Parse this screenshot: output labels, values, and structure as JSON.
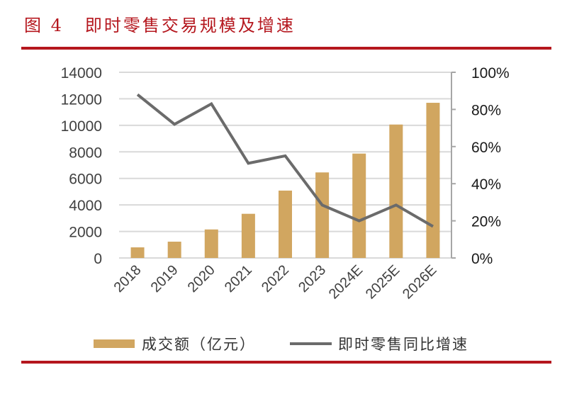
{
  "header": {
    "figure_number": "图 4",
    "title": "即时零售交易规模及增速"
  },
  "colors": {
    "accent_red": "#B5171E",
    "bar": "#D1A660",
    "line": "#6B6B6B",
    "grid": "#D9D9D9",
    "axis": "#A6A6A6"
  },
  "legend": {
    "bar_label": "成交额（亿元）",
    "line_label": "即时零售同比增速"
  },
  "chart_data": {
    "type": "bar+line",
    "title": "即时零售交易规模及增速",
    "categories": [
      "2018",
      "2019",
      "2020",
      "2021",
      "2022",
      "2023",
      "2024E",
      "2025E",
      "2026E"
    ],
    "series": [
      {
        "name": "成交额（亿元）",
        "type": "bar",
        "axis": "left",
        "values": [
          800,
          1230,
          2150,
          3330,
          5080,
          6450,
          7870,
          10060,
          11700
        ]
      },
      {
        "name": "即时零售同比增速",
        "type": "line",
        "axis": "right",
        "values": [
          0.88,
          0.72,
          0.83,
          0.51,
          0.55,
          0.285,
          0.2,
          0.285,
          0.17
        ]
      }
    ],
    "left_axis": {
      "ylim": [
        0,
        14000
      ],
      "ticks": [
        "0",
        "2000",
        "4000",
        "6000",
        "8000",
        "10000",
        "12000",
        "14000"
      ]
    },
    "right_axis": {
      "ylim": [
        0,
        1.0
      ],
      "ticks": [
        "0%",
        "20%",
        "40%",
        "60%",
        "80%",
        "100%"
      ]
    },
    "xlabel": "",
    "ylabel": "",
    "grid": true,
    "legend_position": "bottom"
  }
}
